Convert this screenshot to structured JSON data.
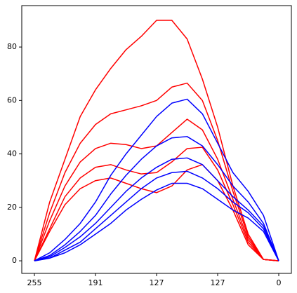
{
  "chart_data": {
    "type": "line",
    "x": [
      0,
      0.25,
      0.5,
      0.75,
      1,
      1.25,
      1.5,
      1.75,
      2,
      2.25,
      2.5,
      2.75,
      3,
      3.25,
      3.5,
      3.75,
      4
    ],
    "series": [
      {
        "color": "#ff0000",
        "values": [
          0,
          22,
          38,
          54,
          64,
          72,
          79,
          84,
          90,
          90,
          83,
          68,
          50,
          28,
          10,
          0.5,
          0
        ]
      },
      {
        "color": "#ff0000",
        "values": [
          0,
          18,
          33,
          44,
          51,
          55,
          56.5,
          58,
          60,
          65,
          66.5,
          60,
          45,
          26,
          9,
          0.5,
          0
        ]
      },
      {
        "color": "#ff0000",
        "values": [
          0,
          15,
          28,
          37,
          42,
          44,
          43.5,
          42,
          43,
          48,
          53,
          49,
          38,
          23,
          8,
          0.5,
          0
        ]
      },
      {
        "color": "#ff0000",
        "values": [
          0,
          12,
          24,
          31,
          35,
          36,
          34,
          32.5,
          33,
          37,
          42,
          42.5,
          34,
          21,
          7,
          0.5,
          0
        ]
      },
      {
        "color": "#ff0000",
        "values": [
          0,
          11,
          21,
          27,
          30,
          31,
          29,
          27,
          25.5,
          28,
          34,
          36,
          30,
          19,
          6,
          0.5,
          0
        ]
      },
      {
        "color": "#0000ff",
        "values": [
          0,
          3,
          8,
          14,
          22,
          32,
          40,
          47,
          54,
          59,
          60.5,
          55,
          44,
          33,
          26,
          17,
          0
        ]
      },
      {
        "color": "#0000ff",
        "values": [
          0,
          2,
          6,
          11,
          17,
          25,
          32,
          38,
          43,
          46,
          46.5,
          43,
          36,
          28,
          22,
          14,
          0
        ]
      },
      {
        "color": "#0000ff",
        "values": [
          0,
          1.5,
          5,
          9,
          14,
          20,
          26,
          31,
          35,
          38,
          38.5,
          36,
          30,
          24,
          19,
          13,
          0
        ]
      },
      {
        "color": "#0000ff",
        "values": [
          0,
          1,
          4,
          7,
          12,
          17,
          22,
          27,
          31,
          33,
          33.5,
          31,
          27,
          22,
          18,
          12,
          0
        ]
      },
      {
        "color": "#0000ff",
        "values": [
          0,
          1,
          3,
          6,
          10,
          14,
          19,
          23,
          26.5,
          29,
          29,
          27,
          23,
          19,
          16,
          11,
          0
        ]
      }
    ],
    "xlim": [
      -0.207,
      4.207
    ],
    "xticks": [
      {
        "value": 0,
        "label": "255"
      },
      {
        "value": 1,
        "label": "191"
      },
      {
        "value": 2,
        "label": "127"
      },
      {
        "value": 3,
        "label": "127"
      },
      {
        "value": 4,
        "label": "0"
      }
    ],
    "ylim": [
      -4.7,
      95.5
    ],
    "yticks": [
      0,
      20,
      40,
      60,
      80
    ]
  }
}
